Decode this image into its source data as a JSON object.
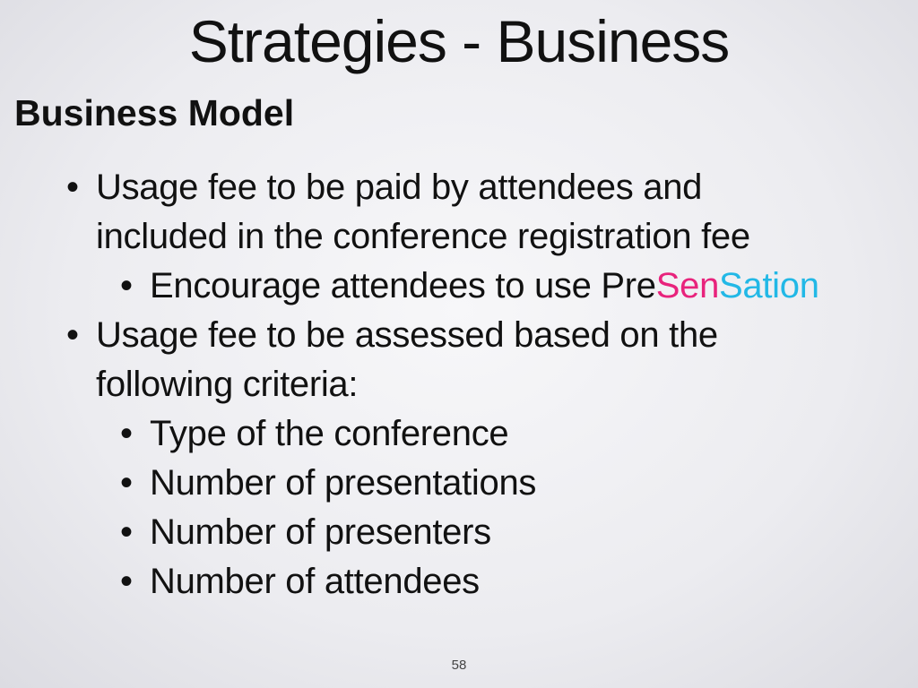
{
  "slide": {
    "title": "Strategies - Business",
    "heading": "Business Model",
    "page_number": "58"
  },
  "bullets": [
    {
      "level": 1,
      "lines": [
        "Usage fee to be paid by attendees and",
        "included in the conference registration fee"
      ]
    },
    {
      "level": 2,
      "text_prefix": "Encourage attendees to use ",
      "brand": {
        "part1": "Pre",
        "part2": "Sen",
        "part3": "Sation",
        "colors": [
          "#111111",
          "#e8237c",
          "#22b8e6"
        ]
      }
    },
    {
      "level": 1,
      "lines": [
        "Usage fee to be assessed based on the",
        "following criteria:"
      ]
    },
    {
      "level": 2,
      "text": "Type of the conference"
    },
    {
      "level": 2,
      "text": "Number of presentations"
    },
    {
      "level": 2,
      "text": "Number of presenters"
    },
    {
      "level": 2,
      "text": "Number of attendees"
    }
  ]
}
